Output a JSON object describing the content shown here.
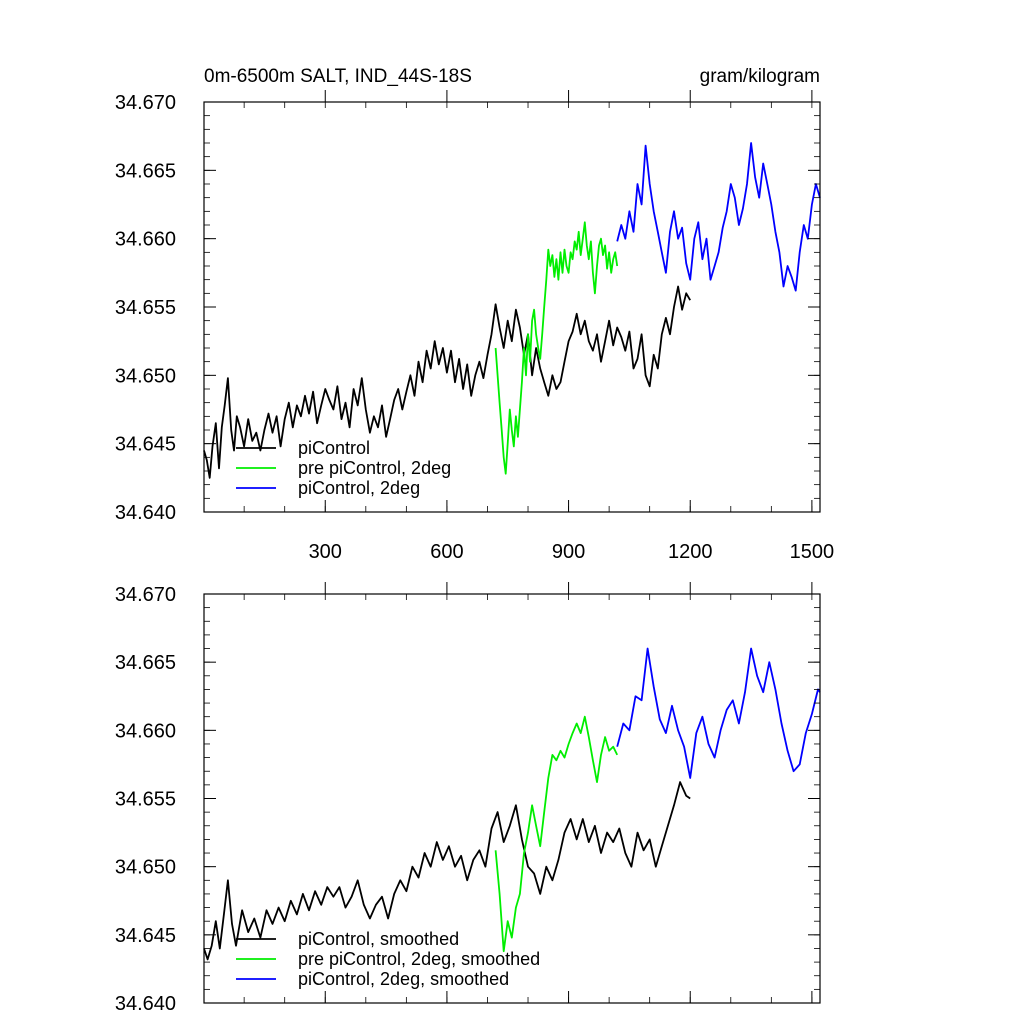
{
  "figure": {
    "title_left": "0m-6500m SALT, IND_44S-18S",
    "title_right": "gram/kilogram"
  },
  "chart_data": [
    {
      "type": "line",
      "panel": "top",
      "xlim": [
        1,
        1520
      ],
      "ylim": [
        34.64,
        34.67
      ],
      "x_ticks": [
        300,
        600,
        900,
        1200,
        1500
      ],
      "x_tick_labels": [
        "300",
        "600",
        "900",
        "1200",
        "1500"
      ],
      "y_ticks": [
        34.64,
        34.645,
        34.65,
        34.655,
        34.66,
        34.665,
        34.67
      ],
      "y_tick_labels": [
        "34.640",
        "34.645",
        "34.650",
        "34.655",
        "34.660",
        "34.665",
        "34.670"
      ],
      "legend_position": "bottom-left",
      "series": [
        {
          "name": "piControl",
          "color": "#000000",
          "x": [
            1,
            8,
            15,
            22,
            30,
            38,
            45,
            52,
            60,
            68,
            75,
            82,
            90,
            100,
            110,
            120,
            130,
            140,
            150,
            160,
            170,
            180,
            190,
            200,
            210,
            220,
            230,
            240,
            250,
            260,
            270,
            280,
            290,
            300,
            310,
            320,
            330,
            340,
            350,
            360,
            370,
            380,
            390,
            400,
            410,
            420,
            430,
            440,
            450,
            460,
            470,
            480,
            490,
            500,
            510,
            520,
            530,
            540,
            550,
            560,
            570,
            580,
            590,
            600,
            610,
            620,
            630,
            640,
            650,
            660,
            670,
            680,
            690,
            700,
            710,
            720,
            730,
            740,
            750,
            760,
            770,
            780,
            790,
            800,
            810,
            820,
            830,
            840,
            850,
            860,
            870,
            880,
            890,
            900,
            910,
            920,
            930,
            940,
            950,
            960,
            970,
            980,
            990,
            1000,
            1010,
            1020,
            1030,
            1040,
            1050,
            1060,
            1070,
            1080,
            1090,
            1100,
            1110,
            1120,
            1130,
            1140,
            1150,
            1160,
            1170,
            1180,
            1190,
            1200
          ],
          "y": [
            34.6445,
            34.6438,
            34.6425,
            34.6448,
            34.6465,
            34.6432,
            34.6462,
            34.6478,
            34.6498,
            34.646,
            34.6445,
            34.647,
            34.6462,
            34.6448,
            34.6468,
            34.6452,
            34.6458,
            34.6445,
            34.646,
            34.6472,
            34.6458,
            34.647,
            34.6448,
            34.6468,
            34.648,
            34.6462,
            34.6478,
            34.647,
            34.6485,
            34.6472,
            34.6488,
            34.6465,
            34.6478,
            34.649,
            34.6482,
            34.6475,
            34.6492,
            34.6468,
            34.648,
            34.6462,
            34.649,
            34.6478,
            34.6498,
            34.6475,
            34.6458,
            34.647,
            34.6462,
            34.6478,
            34.6455,
            34.6468,
            34.6482,
            34.649,
            34.6475,
            34.6488,
            34.65,
            34.6485,
            34.651,
            34.6495,
            34.6518,
            34.6505,
            34.6525,
            34.6508,
            34.652,
            34.6502,
            34.6518,
            34.6495,
            34.6512,
            34.649,
            34.6508,
            34.6485,
            34.65,
            34.651,
            34.6498,
            34.6515,
            34.653,
            34.6552,
            34.6535,
            34.652,
            34.654,
            34.6525,
            34.6548,
            34.6535,
            34.6515,
            34.653,
            34.65,
            34.652,
            34.6505,
            34.6495,
            34.6485,
            34.65,
            34.649,
            34.6495,
            34.651,
            34.6525,
            34.6532,
            34.6545,
            34.653,
            34.654,
            34.6525,
            34.6518,
            34.653,
            34.651,
            34.6525,
            34.654,
            34.6522,
            34.6535,
            34.6528,
            34.6518,
            34.6532,
            34.6505,
            34.6512,
            34.653,
            34.65,
            34.6492,
            34.6515,
            34.6505,
            34.653,
            34.6542,
            34.653,
            34.655,
            34.6565,
            34.6548,
            34.656,
            34.6555
          ]
        },
        {
          "name": "pre piControl, 2deg",
          "color": "#00ee00",
          "x": [
            720,
            725,
            730,
            735,
            740,
            745,
            750,
            755,
            760,
            765,
            770,
            775,
            780,
            785,
            790,
            795,
            800,
            805,
            810,
            815,
            820,
            825,
            830,
            835,
            840,
            845,
            850,
            855,
            860,
            865,
            870,
            875,
            880,
            885,
            890,
            895,
            900,
            905,
            910,
            915,
            920,
            925,
            930,
            935,
            940,
            945,
            950,
            955,
            960,
            965,
            970,
            975,
            980,
            985,
            990,
            995,
            1000,
            1005,
            1010,
            1015,
            1020
          ],
          "y": [
            34.652,
            34.65,
            34.648,
            34.646,
            34.644,
            34.6428,
            34.645,
            34.6475,
            34.646,
            34.6448,
            34.647,
            34.6455,
            34.6475,
            34.6495,
            34.652,
            34.65,
            34.653,
            34.651,
            34.654,
            34.6548,
            34.653,
            34.652,
            34.6512,
            34.653,
            34.655,
            34.657,
            34.6592,
            34.658,
            34.6588,
            34.6572,
            34.6585,
            34.657,
            34.659,
            34.6575,
            34.6592,
            34.658,
            34.6575,
            34.659,
            34.6585,
            34.6598,
            34.6592,
            34.6605,
            34.6588,
            34.66,
            34.6612,
            34.6595,
            34.6585,
            34.6598,
            34.6575,
            34.656,
            34.658,
            34.6595,
            34.66,
            34.6588,
            34.6595,
            34.6578,
            34.659,
            34.6575,
            34.6585,
            34.659,
            34.658
          ]
        },
        {
          "name": "piControl, 2deg",
          "color": "#0000ff",
          "x": [
            1020,
            1030,
            1040,
            1050,
            1060,
            1070,
            1080,
            1090,
            1100,
            1110,
            1120,
            1130,
            1140,
            1150,
            1160,
            1170,
            1180,
            1190,
            1200,
            1210,
            1220,
            1230,
            1240,
            1250,
            1260,
            1270,
            1280,
            1290,
            1300,
            1310,
            1320,
            1330,
            1340,
            1350,
            1360,
            1370,
            1380,
            1390,
            1400,
            1410,
            1420,
            1430,
            1440,
            1450,
            1460,
            1470,
            1480,
            1490,
            1500,
            1510,
            1520
          ],
          "y": [
            34.6598,
            34.661,
            34.66,
            34.662,
            34.6605,
            34.664,
            34.6625,
            34.6668,
            34.664,
            34.662,
            34.6605,
            34.659,
            34.6575,
            34.6605,
            34.662,
            34.66,
            34.6608,
            34.6582,
            34.657,
            34.66,
            34.6612,
            34.6585,
            34.66,
            34.657,
            34.658,
            34.659,
            34.6608,
            34.662,
            34.664,
            34.663,
            34.661,
            34.6622,
            34.664,
            34.667,
            34.6645,
            34.663,
            34.6655,
            34.664,
            34.6625,
            34.6605,
            34.659,
            34.6565,
            34.658,
            34.6572,
            34.6562,
            34.659,
            34.661,
            34.66,
            34.6625,
            34.664,
            34.663
          ]
        }
      ]
    },
    {
      "type": "line",
      "panel": "bottom",
      "xlim": [
        1,
        1520
      ],
      "ylim": [
        34.64,
        34.67
      ],
      "x_ticks": [
        300,
        600,
        900,
        1200,
        1500
      ],
      "y_ticks": [
        34.64,
        34.645,
        34.65,
        34.655,
        34.66,
        34.665,
        34.67
      ],
      "y_tick_labels": [
        "34.640",
        "34.645",
        "34.650",
        "34.655",
        "34.660",
        "34.665",
        "34.670"
      ],
      "legend_position": "bottom-left",
      "series": [
        {
          "name": "piControl, smoothed",
          "color": "#000000",
          "x": [
            1,
            10,
            20,
            30,
            40,
            50,
            60,
            70,
            80,
            95,
            110,
            125,
            140,
            155,
            170,
            185,
            200,
            215,
            230,
            245,
            260,
            275,
            290,
            305,
            320,
            335,
            350,
            365,
            380,
            395,
            410,
            425,
            440,
            455,
            470,
            485,
            500,
            515,
            530,
            545,
            560,
            575,
            590,
            605,
            620,
            635,
            650,
            665,
            680,
            695,
            710,
            725,
            740,
            755,
            770,
            785,
            800,
            815,
            830,
            845,
            860,
            875,
            890,
            905,
            920,
            935,
            950,
            965,
            980,
            995,
            1010,
            1025,
            1040,
            1055,
            1070,
            1085,
            1100,
            1115,
            1130,
            1145,
            1160,
            1175,
            1190,
            1200
          ],
          "y": [
            34.644,
            34.6432,
            34.6442,
            34.646,
            34.644,
            34.6465,
            34.649,
            34.6458,
            34.6442,
            34.6468,
            34.6452,
            34.6462,
            34.6448,
            34.6468,
            34.6458,
            34.647,
            34.646,
            34.6475,
            34.6465,
            34.648,
            34.6468,
            34.6482,
            34.6472,
            34.6485,
            34.6478,
            34.6485,
            34.647,
            34.6478,
            34.649,
            34.6472,
            34.6462,
            34.6472,
            34.6478,
            34.6462,
            34.648,
            34.649,
            34.6482,
            34.65,
            34.6492,
            34.651,
            34.65,
            34.6518,
            34.6505,
            34.6515,
            34.65,
            34.6508,
            34.649,
            34.6505,
            34.6512,
            34.65,
            34.6528,
            34.654,
            34.6518,
            34.653,
            34.6545,
            34.652,
            34.65,
            34.6495,
            34.648,
            34.65,
            34.649,
            34.6505,
            34.6525,
            34.6535,
            34.652,
            34.6535,
            34.6518,
            34.653,
            34.651,
            34.6525,
            34.6518,
            34.6528,
            34.651,
            34.65,
            34.6525,
            34.6512,
            34.652,
            34.65,
            34.6515,
            34.653,
            34.6545,
            34.6562,
            34.6552,
            34.655
          ]
        },
        {
          "name": "pre piControl, 2deg, smoothed",
          "color": "#00ee00",
          "x": [
            720,
            730,
            740,
            750,
            760,
            770,
            780,
            790,
            800,
            810,
            820,
            830,
            840,
            850,
            860,
            870,
            880,
            890,
            900,
            910,
            920,
            930,
            940,
            950,
            960,
            970,
            980,
            990,
            1000,
            1010,
            1020
          ],
          "y": [
            34.6512,
            34.648,
            34.6438,
            34.646,
            34.6448,
            34.647,
            34.648,
            34.651,
            34.6525,
            34.6545,
            34.653,
            34.6515,
            34.654,
            34.6565,
            34.6582,
            34.6578,
            34.6585,
            34.658,
            34.659,
            34.6598,
            34.6605,
            34.6598,
            34.661,
            34.6595,
            34.6578,
            34.6562,
            34.6582,
            34.6595,
            34.6585,
            34.6588,
            34.6582
          ]
        },
        {
          "name": "piControl, 2deg, smoothed",
          "color": "#0000ff",
          "x": [
            1020,
            1035,
            1050,
            1065,
            1080,
            1095,
            1110,
            1125,
            1140,
            1155,
            1170,
            1185,
            1200,
            1215,
            1230,
            1245,
            1260,
            1275,
            1290,
            1305,
            1320,
            1335,
            1350,
            1365,
            1380,
            1395,
            1410,
            1425,
            1440,
            1455,
            1470,
            1485,
            1500,
            1515,
            1520
          ],
          "y": [
            34.6588,
            34.6605,
            34.66,
            34.6625,
            34.6622,
            34.666,
            34.6632,
            34.6608,
            34.6598,
            34.6618,
            34.66,
            34.6588,
            34.6565,
            34.6598,
            34.661,
            34.659,
            34.658,
            34.66,
            34.6615,
            34.6622,
            34.6605,
            34.6628,
            34.666,
            34.664,
            34.6628,
            34.665,
            34.663,
            34.6605,
            34.6585,
            34.657,
            34.6575,
            34.6598,
            34.6612,
            34.663,
            34.6628
          ]
        }
      ]
    }
  ]
}
